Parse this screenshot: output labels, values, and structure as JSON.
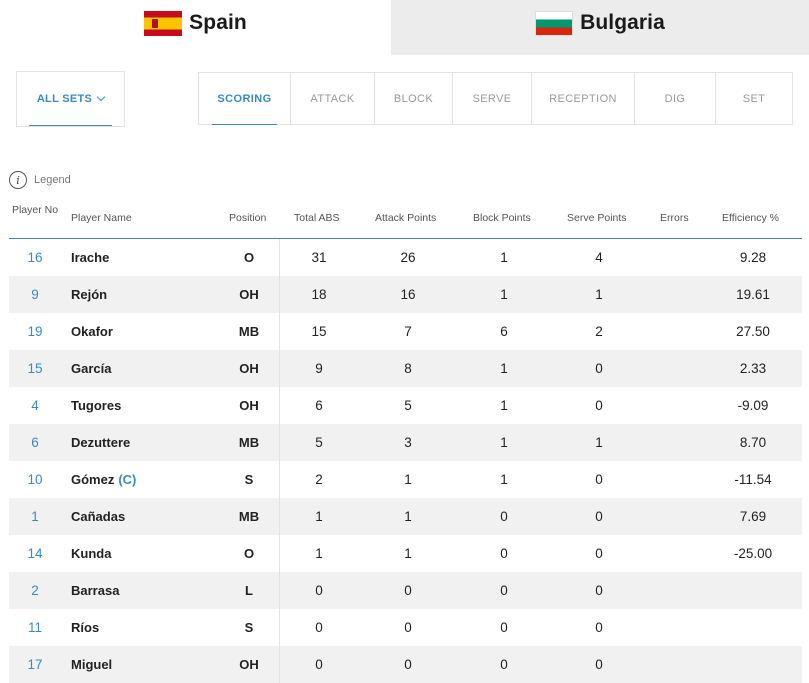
{
  "teams": [
    {
      "name": "Spain",
      "flag": "spain-flag-icon",
      "active": true
    },
    {
      "name": "Bulgaria",
      "flag": "bulgaria-flag-icon",
      "active": false
    }
  ],
  "sets_filter": {
    "label": "ALL SETS"
  },
  "stat_tabs": [
    {
      "label": "SCORING",
      "active": true
    },
    {
      "label": "ATTACK"
    },
    {
      "label": "BLOCK"
    },
    {
      "label": "SERVE"
    },
    {
      "label": "RECEPTION"
    },
    {
      "label": "DIG"
    },
    {
      "label": "SET"
    }
  ],
  "legend": {
    "label": "Legend"
  },
  "table": {
    "headers": {
      "no": "Player No",
      "name": "Player Name",
      "position": "Position",
      "total_abs": "Total ABS",
      "attack_points": "Attack Points",
      "block_points": "Block Points",
      "serve_points": "Serve Points",
      "errors": "Errors",
      "efficiency": "Efficiency %"
    },
    "rows": [
      {
        "no": "16",
        "name": "Irache",
        "captain": "",
        "position": "O",
        "total_abs": "31",
        "attack": "26",
        "block": "1",
        "serve": "4",
        "efficiency": "9.28"
      },
      {
        "no": "9",
        "name": "Rejón",
        "captain": "",
        "position": "OH",
        "total_abs": "18",
        "attack": "16",
        "block": "1",
        "serve": "1",
        "efficiency": "19.61"
      },
      {
        "no": "19",
        "name": "Okafor",
        "captain": "",
        "position": "MB",
        "total_abs": "15",
        "attack": "7",
        "block": "6",
        "serve": "2",
        "efficiency": "27.50"
      },
      {
        "no": "15",
        "name": "García",
        "captain": "",
        "position": "OH",
        "total_abs": "9",
        "attack": "8",
        "block": "1",
        "serve": "0",
        "efficiency": "2.33"
      },
      {
        "no": "4",
        "name": "Tugores",
        "captain": "",
        "position": "OH",
        "total_abs": "6",
        "attack": "5",
        "block": "1",
        "serve": "0",
        "efficiency": "-9.09"
      },
      {
        "no": "6",
        "name": "Dezuttere",
        "captain": "",
        "position": "MB",
        "total_abs": "5",
        "attack": "3",
        "block": "1",
        "serve": "1",
        "efficiency": "8.70"
      },
      {
        "no": "10",
        "name": "Gómez",
        "captain": "(C)",
        "position": "S",
        "total_abs": "2",
        "attack": "1",
        "block": "1",
        "serve": "0",
        "efficiency": "-11.54"
      },
      {
        "no": "1",
        "name": "Cañadas",
        "captain": "",
        "position": "MB",
        "total_abs": "1",
        "attack": "1",
        "block": "0",
        "serve": "0",
        "efficiency": "7.69"
      },
      {
        "no": "14",
        "name": "Kunda",
        "captain": "",
        "position": "O",
        "total_abs": "1",
        "attack": "1",
        "block": "0",
        "serve": "0",
        "efficiency": "-25.00"
      },
      {
        "no": "2",
        "name": "Barrasa",
        "captain": "",
        "position": "L",
        "total_abs": "0",
        "attack": "0",
        "block": "0",
        "serve": "0",
        "efficiency": ""
      },
      {
        "no": "11",
        "name": "Ríos",
        "captain": "",
        "position": "S",
        "total_abs": "0",
        "attack": "0",
        "block": "0",
        "serve": "0",
        "efficiency": ""
      },
      {
        "no": "17",
        "name": "Miguel",
        "captain": "",
        "position": "OH",
        "total_abs": "0",
        "attack": "0",
        "block": "0",
        "serve": "0",
        "efficiency": ""
      }
    ]
  }
}
